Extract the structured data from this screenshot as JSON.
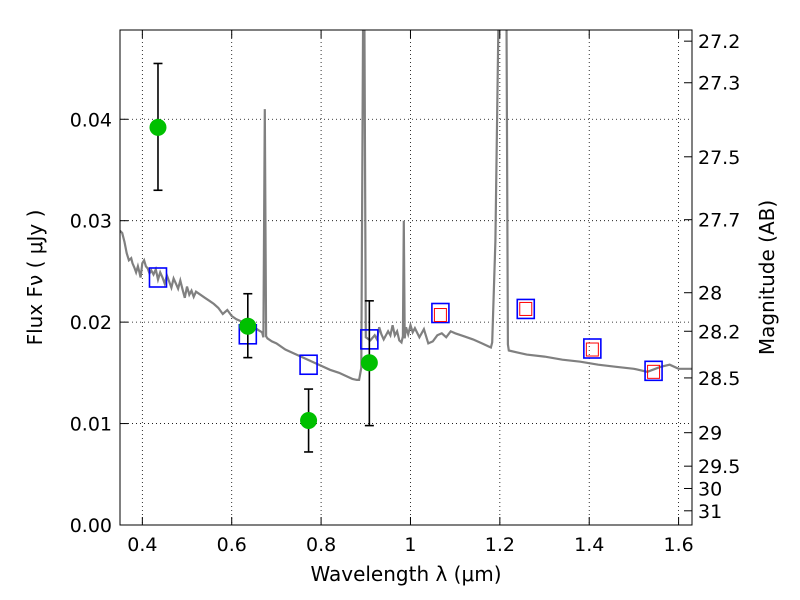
{
  "chart_data": {
    "type": "scatter",
    "xlabel": "Wavelength  λ (μm)",
    "ylabel": "Flux  Fν  ( μJy )",
    "y2label": "Magnitude (AB)",
    "xlim": [
      0.35,
      1.63
    ],
    "ylim": [
      0.0,
      0.0488
    ],
    "grid": true,
    "x_ticks": [
      {
        "value": 0.4,
        "label": "0.4"
      },
      {
        "value": 0.6,
        "label": "0.6"
      },
      {
        "value": 0.8,
        "label": "0.8"
      },
      {
        "value": 1.0,
        "label": "1"
      },
      {
        "value": 1.2,
        "label": "1.2"
      },
      {
        "value": 1.4,
        "label": "1.4"
      },
      {
        "value": 1.6,
        "label": "1.6"
      }
    ],
    "y_ticks": [
      {
        "value": 0.0,
        "label": "0.00"
      },
      {
        "value": 0.01,
        "label": "0.01"
      },
      {
        "value": 0.02,
        "label": "0.02"
      },
      {
        "value": 0.03,
        "label": "0.03"
      },
      {
        "value": 0.04,
        "label": "0.04"
      }
    ],
    "right_ticks": [
      {
        "flux": 0.0477,
        "label": "27.2"
      },
      {
        "flux": 0.0436,
        "label": "27.3"
      },
      {
        "flux": 0.0363,
        "label": "27.5"
      },
      {
        "flux": 0.0301,
        "label": "27.7"
      },
      {
        "flux": 0.0229,
        "label": "28"
      },
      {
        "flux": 0.0191,
        "label": "28.2"
      },
      {
        "flux": 0.0145,
        "label": "28.5"
      },
      {
        "flux": 0.0091,
        "label": "29"
      },
      {
        "flux": 0.0058,
        "label": "29.5"
      },
      {
        "flux": 0.0036,
        "label": "30"
      },
      {
        "flux": 0.0014,
        "label": "31"
      }
    ],
    "series": [
      {
        "kind": "model_spectrum",
        "color": "#808080",
        "points": [
          [
            0.35,
            0.029
          ],
          [
            0.355,
            0.0288
          ],
          [
            0.36,
            0.0279
          ],
          [
            0.365,
            0.0268
          ],
          [
            0.37,
            0.0261
          ],
          [
            0.375,
            0.0263
          ],
          [
            0.378,
            0.0258
          ],
          [
            0.382,
            0.0254
          ],
          [
            0.386,
            0.0249
          ],
          [
            0.39,
            0.0255
          ],
          [
            0.393,
            0.025
          ],
          [
            0.396,
            0.0244
          ],
          [
            0.4,
            0.0258
          ],
          [
            0.404,
            0.0261
          ],
          [
            0.408,
            0.0255
          ],
          [
            0.412,
            0.0253
          ],
          [
            0.416,
            0.0248
          ],
          [
            0.42,
            0.0251
          ],
          [
            0.425,
            0.0247
          ],
          [
            0.43,
            0.0252
          ],
          [
            0.435,
            0.0242
          ],
          [
            0.44,
            0.0249
          ],
          [
            0.445,
            0.0244
          ],
          [
            0.45,
            0.0238
          ],
          [
            0.455,
            0.0246
          ],
          [
            0.46,
            0.024
          ],
          [
            0.465,
            0.0234
          ],
          [
            0.47,
            0.0243
          ],
          [
            0.475,
            0.0238
          ],
          [
            0.48,
            0.0233
          ],
          [
            0.485,
            0.0241
          ],
          [
            0.49,
            0.0232
          ],
          [
            0.495,
            0.0224
          ],
          [
            0.5,
            0.0235
          ],
          [
            0.505,
            0.0227
          ],
          [
            0.51,
            0.0231
          ],
          [
            0.515,
            0.0225
          ],
          [
            0.52,
            0.023
          ],
          [
            0.53,
            0.0227
          ],
          [
            0.54,
            0.0224
          ],
          [
            0.55,
            0.0221
          ],
          [
            0.56,
            0.0218
          ],
          [
            0.57,
            0.0214
          ],
          [
            0.58,
            0.0208
          ],
          [
            0.59,
            0.0212
          ],
          [
            0.6,
            0.0206
          ],
          [
            0.61,
            0.0203
          ],
          [
            0.62,
            0.0201
          ],
          [
            0.63,
            0.0199
          ],
          [
            0.64,
            0.0197
          ],
          [
            0.65,
            0.0195
          ],
          [
            0.66,
            0.0192
          ],
          [
            0.668,
            0.019
          ],
          [
            0.671,
            0.0185
          ],
          [
            0.674,
            0.041
          ],
          [
            0.677,
            0.0186
          ],
          [
            0.68,
            0.0184
          ],
          [
            0.69,
            0.0181
          ],
          [
            0.7,
            0.0179
          ],
          [
            0.72,
            0.0173
          ],
          [
            0.74,
            0.0169
          ],
          [
            0.76,
            0.0165
          ],
          [
            0.78,
            0.0161
          ],
          [
            0.8,
            0.0157
          ],
          [
            0.82,
            0.0153
          ],
          [
            0.84,
            0.015
          ],
          [
            0.86,
            0.0146
          ],
          [
            0.87,
            0.0144
          ],
          [
            0.88,
            0.0143
          ],
          [
            0.885,
            0.0143
          ],
          [
            0.89,
            0.0155
          ],
          [
            0.894,
            0.05
          ],
          [
            0.897,
            0.05
          ],
          [
            0.9,
            0.0185
          ],
          [
            0.91,
            0.0182
          ],
          [
            0.92,
            0.0187
          ],
          [
            0.925,
            0.0183
          ],
          [
            0.93,
            0.0195
          ],
          [
            0.935,
            0.0188
          ],
          [
            0.94,
            0.0183
          ],
          [
            0.95,
            0.0191
          ],
          [
            0.955,
            0.0187
          ],
          [
            0.96,
            0.0197
          ],
          [
            0.965,
            0.0187
          ],
          [
            0.97,
            0.0191
          ],
          [
            0.975,
            0.0182
          ],
          [
            0.98,
            0.018
          ],
          [
            0.983,
            0.0186
          ],
          [
            0.985,
            0.03
          ],
          [
            0.987,
            0.0184
          ],
          [
            0.99,
            0.0195
          ],
          [
            0.995,
            0.0188
          ],
          [
            1.0,
            0.0197
          ],
          [
            1.005,
            0.019
          ],
          [
            1.01,
            0.0194
          ],
          [
            1.02,
            0.0185
          ],
          [
            1.03,
            0.0193
          ],
          [
            1.04,
            0.0179
          ],
          [
            1.05,
            0.0181
          ],
          [
            1.06,
            0.0187
          ],
          [
            1.07,
            0.0189
          ],
          [
            1.08,
            0.0185
          ],
          [
            1.09,
            0.0191
          ],
          [
            1.1,
            0.0189
          ],
          [
            1.12,
            0.0186
          ],
          [
            1.14,
            0.0183
          ],
          [
            1.16,
            0.0179
          ],
          [
            1.175,
            0.0176
          ],
          [
            1.18,
            0.0175
          ],
          [
            1.183,
            0.018
          ],
          [
            1.19,
            0.028
          ],
          [
            1.197,
            0.05
          ],
          [
            1.215,
            0.05
          ],
          [
            1.218,
            0.0178
          ],
          [
            1.22,
            0.0172
          ],
          [
            1.24,
            0.017
          ],
          [
            1.26,
            0.0168
          ],
          [
            1.3,
            0.0166
          ],
          [
            1.34,
            0.0163
          ],
          [
            1.38,
            0.0161
          ],
          [
            1.42,
            0.0158
          ],
          [
            1.46,
            0.0156
          ],
          [
            1.5,
            0.0154
          ],
          [
            1.53,
            0.0151
          ],
          [
            1.56,
            0.0156
          ],
          [
            1.58,
            0.0158
          ],
          [
            1.6,
            0.0154
          ],
          [
            1.63,
            0.0154
          ]
        ]
      },
      {
        "kind": "model_photometry",
        "marker": "square",
        "color": "#0000ff",
        "points": [
          {
            "x": 0.435,
            "y": 0.0244
          },
          {
            "x": 0.636,
            "y": 0.0188
          },
          {
            "x": 0.772,
            "y": 0.0158
          },
          {
            "x": 0.908,
            "y": 0.0183
          },
          {
            "x": 1.067,
            "y": 0.0209
          },
          {
            "x": 1.258,
            "y": 0.0213
          },
          {
            "x": 1.407,
            "y": 0.0174
          },
          {
            "x": 1.544,
            "y": 0.0152
          }
        ]
      },
      {
        "kind": "observed_photometry",
        "marker": "circle",
        "color": "#00c000",
        "points": [
          {
            "x": 0.435,
            "y": 0.0392,
            "err_lo": 0.033,
            "err_hi": 0.0455
          },
          {
            "x": 0.636,
            "y": 0.0196,
            "err_lo": 0.0165,
            "err_hi": 0.0228
          },
          {
            "x": 0.772,
            "y": 0.0103,
            "err_lo": 0.0072,
            "err_hi": 0.0134
          },
          {
            "x": 0.908,
            "y": 0.016,
            "err_lo": 0.0098,
            "err_hi": 0.0221
          }
        ]
      },
      {
        "kind": "upper_limit_photometry",
        "marker": "square",
        "color": "#ff0000",
        "points": [
          {
            "x": 1.067,
            "y": 0.0207
          },
          {
            "x": 1.258,
            "y": 0.0213
          },
          {
            "x": 1.407,
            "y": 0.0173
          },
          {
            "x": 1.544,
            "y": 0.0151
          }
        ]
      }
    ]
  }
}
